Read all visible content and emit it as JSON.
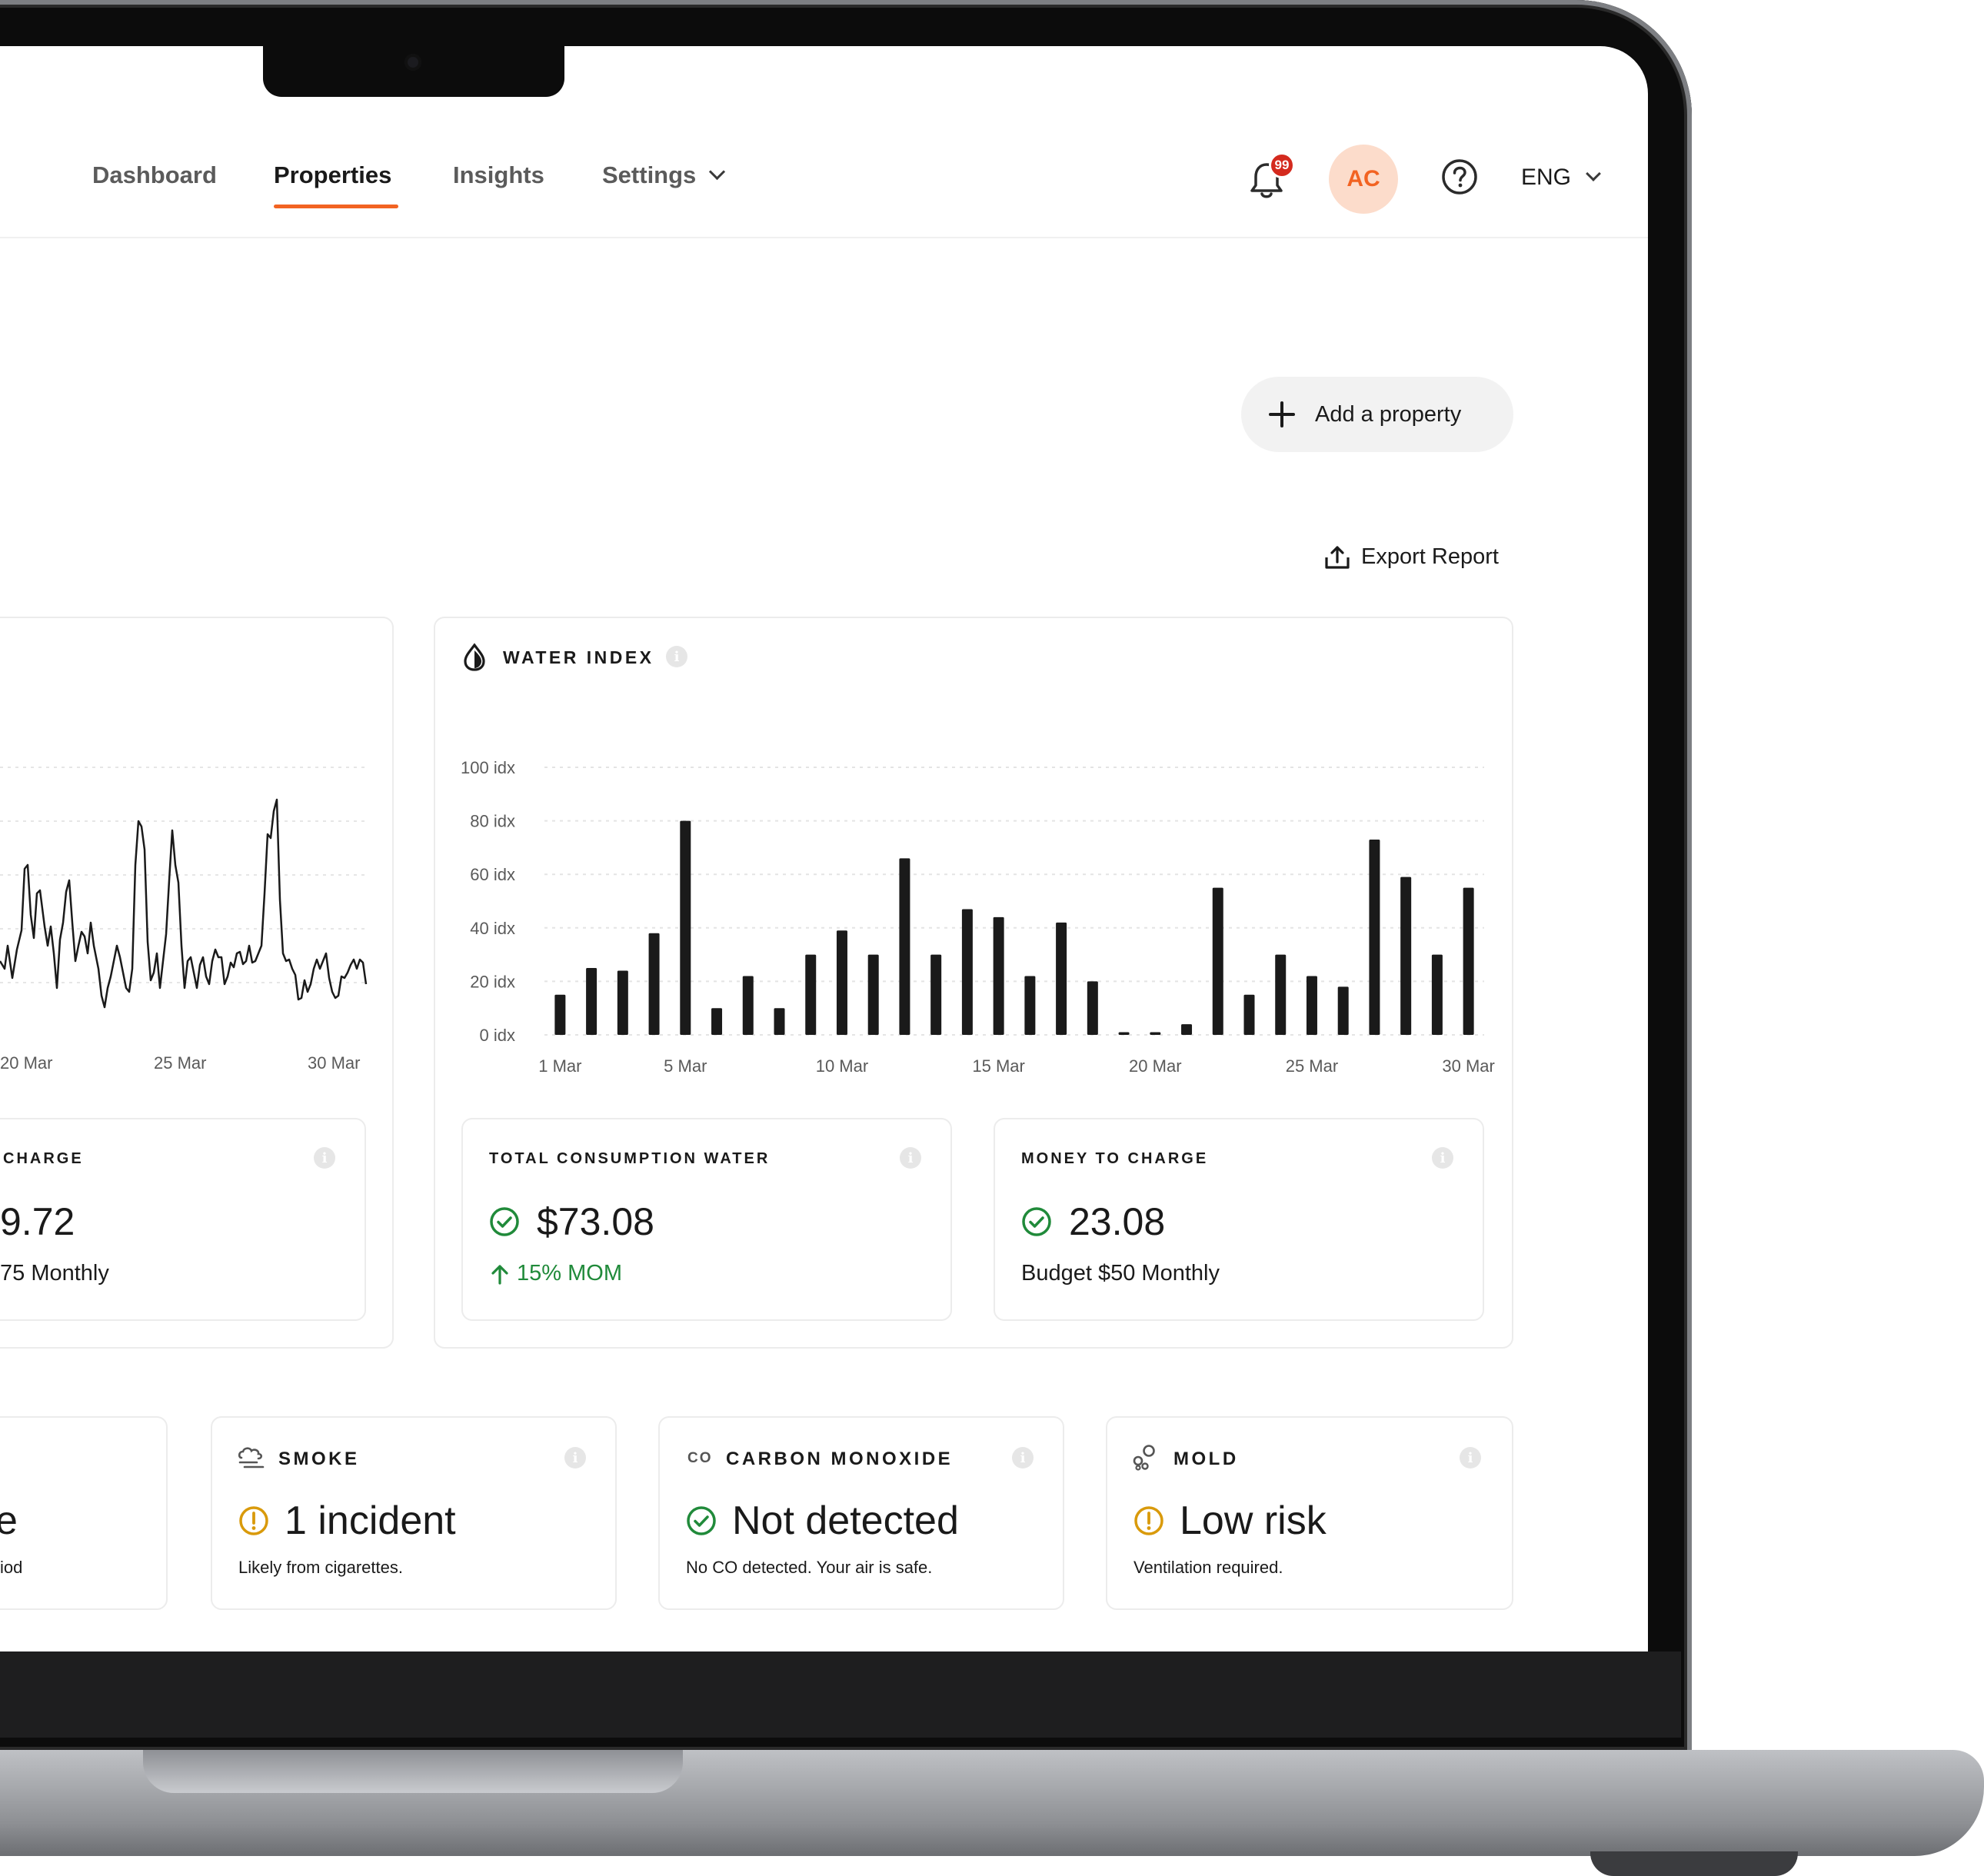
{
  "nav": {
    "items": [
      {
        "label": "Dashboard",
        "active": false
      },
      {
        "label": "Properties",
        "active": true
      },
      {
        "label": "Insights",
        "active": false
      },
      {
        "label": "Settings",
        "active": false,
        "has_dropdown": true
      }
    ]
  },
  "header": {
    "notification_count": "99",
    "avatar_initials": "AC",
    "language": "ENG"
  },
  "actions": {
    "add_property_label": "Add a property",
    "export_label": "Export Report"
  },
  "energy_partial": {
    "x_ticks": [
      "20 Mar",
      "25 Mar",
      "30 Mar"
    ],
    "money_label": "CHARGE",
    "money_value": "9.72",
    "money_sub": "75 Monthly"
  },
  "water": {
    "title": "WATER INDEX",
    "total_label": "TOTAL CONSUMPTION WATER",
    "total_value": "$73.08",
    "total_change": "15% MOM",
    "money_label": "MONEY TO CHARGE",
    "money_value": "23.08",
    "money_sub": "Budget $50 Monthly"
  },
  "chart_data": {
    "type": "bar",
    "title": "WATER INDEX",
    "y_ticks": [
      "0 idx",
      "20 idx",
      "40 idx",
      "60 idx",
      "80 idx",
      "100 idx"
    ],
    "ylim": [
      0,
      100
    ],
    "x_tick_labels": [
      "1 Mar",
      "5 Mar",
      "10 Mar",
      "15 Mar",
      "20 Mar",
      "25 Mar",
      "30 Mar"
    ],
    "categories": [
      "1 Mar",
      "2 Mar",
      "3 Mar",
      "4 Mar",
      "5 Mar",
      "6 Mar",
      "7 Mar",
      "8 Mar",
      "9 Mar",
      "10 Mar",
      "11 Mar",
      "12 Mar",
      "13 Mar",
      "14 Mar",
      "15 Mar",
      "16 Mar",
      "17 Mar",
      "18 Mar",
      "19 Mar",
      "20 Mar",
      "21 Mar",
      "22 Mar",
      "23 Mar",
      "24 Mar",
      "25 Mar",
      "26 Mar",
      "27 Mar",
      "28 Mar",
      "29 Mar",
      "30 Mar"
    ],
    "values": [
      15,
      25,
      24,
      38,
      80,
      10,
      22,
      10,
      30,
      39,
      30,
      66,
      30,
      47,
      44,
      22,
      42,
      20,
      1,
      1,
      4,
      55,
      15,
      30,
      22,
      18,
      73,
      59,
      30,
      55
    ],
    "grid": true
  },
  "sensors": [
    {
      "title": "SMOKE",
      "status_icon": "warning",
      "value": "1 incident",
      "sub": "Likely from cigarettes."
    },
    {
      "title": "CARBON MONOXIDE",
      "badge": "CO",
      "status_icon": "check",
      "value": "Not detected",
      "sub": "No CO detected. Your air is safe."
    },
    {
      "title": "MOLD",
      "status_icon": "warning",
      "value": "Low risk",
      "sub": "Ventilation required."
    }
  ],
  "sensor_partial": {
    "value_tail": "e",
    "sub_tail": "iod"
  },
  "colors": {
    "accent": "#f26322",
    "positive": "#208a3a",
    "warning": "#d99a0b",
    "bar": "#1a1a1a"
  },
  "icons": {
    "info": "i"
  }
}
